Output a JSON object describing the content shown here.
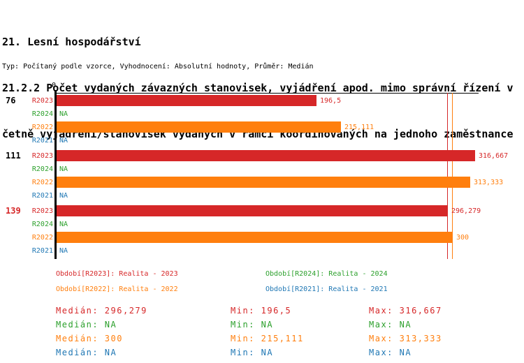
{
  "header": {
    "line1": "21. Lesní hospodářství",
    "line2": "21.2.2 Počet vydaných závazných stanovisek, vyjádření apod. mimo správní řízení v",
    "line3": "četně vyjádření/stanovisek vydaných v rámci koordinovaných na jednoho zaměstnance",
    "meta": "Typ: Počítaný podle vzorce, Vyhodnocení: Absolutní hodnoty, Průměr: Medián"
  },
  "colors": {
    "red": "#d62728",
    "green": "#2ca02c",
    "orange": "#ff7f0e",
    "blue": "#1f77b4",
    "black": "#000000"
  },
  "chart_data": {
    "type": "bar",
    "orientation": "horizontal",
    "axis": {
      "zero_label": "0",
      "xlim": [
        0,
        320
      ],
      "grid": false
    },
    "categories": [
      "76",
      "111",
      "139"
    ],
    "series": [
      {
        "name": "R2023",
        "legend": "Období[R2023]: Realita - 2023",
        "color_key": "red",
        "values": [
          196.5,
          316.667,
          296.279
        ]
      },
      {
        "name": "R2024",
        "legend": "Období[R2024]: Realita - 2024",
        "color_key": "green",
        "values": [
          null,
          null,
          null
        ]
      },
      {
        "name": "R2022",
        "legend": "Období[R2022]: Realita - 2022",
        "color_key": "orange",
        "values": [
          215.111,
          313.333,
          300
        ]
      },
      {
        "name": "R2021",
        "legend": "Období[R2021]: Realita - 2021",
        "color_key": "blue",
        "values": [
          null,
          null,
          null
        ]
      }
    ],
    "groups": [
      {
        "label": "76",
        "highlighted": false,
        "rows": [
          {
            "series": "R2023",
            "color_key": "red",
            "value": 196.5,
            "value_label": "196,5"
          },
          {
            "series": "R2024",
            "color_key": "green",
            "value": null,
            "value_label": "NA"
          },
          {
            "series": "R2022",
            "color_key": "orange",
            "value": 215.111,
            "value_label": "215,111"
          },
          {
            "series": "R2021",
            "color_key": "blue",
            "value": null,
            "value_label": "NA"
          }
        ]
      },
      {
        "label": "111",
        "highlighted": false,
        "rows": [
          {
            "series": "R2023",
            "color_key": "red",
            "value": 316.667,
            "value_label": "316,667"
          },
          {
            "series": "R2024",
            "color_key": "green",
            "value": null,
            "value_label": "NA"
          },
          {
            "series": "R2022",
            "color_key": "orange",
            "value": 313.333,
            "value_label": "313,333"
          },
          {
            "series": "R2021",
            "color_key": "blue",
            "value": null,
            "value_label": "NA"
          }
        ]
      },
      {
        "label": "139",
        "highlighted": true,
        "rows": [
          {
            "series": "R2023",
            "color_key": "red",
            "value": 296.279,
            "value_label": "296,279"
          },
          {
            "series": "R2024",
            "color_key": "green",
            "value": null,
            "value_label": "NA"
          },
          {
            "series": "R2022",
            "color_key": "orange",
            "value": 300,
            "value_label": "300"
          },
          {
            "series": "R2021",
            "color_key": "blue",
            "value": null,
            "value_label": "NA"
          }
        ]
      }
    ],
    "median_lines": [
      {
        "color_key": "red",
        "value": 296.279
      },
      {
        "color_key": "orange",
        "value": 300
      }
    ],
    "legend_items": [
      {
        "text": "Období[R2023]: Realita - 2023",
        "color_key": "red",
        "col": 0,
        "row": 0
      },
      {
        "text": "Období[R2024]: Realita - 2024",
        "color_key": "green",
        "col": 1,
        "row": 0
      },
      {
        "text": "Období[R2022]: Realita - 2022",
        "color_key": "orange",
        "col": 0,
        "row": 1
      },
      {
        "text": "Období[R2021]: Realita - 2021",
        "color_key": "blue",
        "col": 1,
        "row": 1
      }
    ],
    "stats_rows": [
      {
        "color_key": "red",
        "median": "Medián: 296,279",
        "min": "Min: 196,5",
        "max": "Max: 316,667"
      },
      {
        "color_key": "green",
        "median": "Medián: NA",
        "min": "Min: NA",
        "max": "Max: NA"
      },
      {
        "color_key": "orange",
        "median": "Medián: 300",
        "min": "Min: 215,111",
        "max": "Max: 313,333"
      },
      {
        "color_key": "blue",
        "median": "Medián: NA",
        "min": "Min: NA",
        "max": "Max: NA"
      }
    ]
  }
}
